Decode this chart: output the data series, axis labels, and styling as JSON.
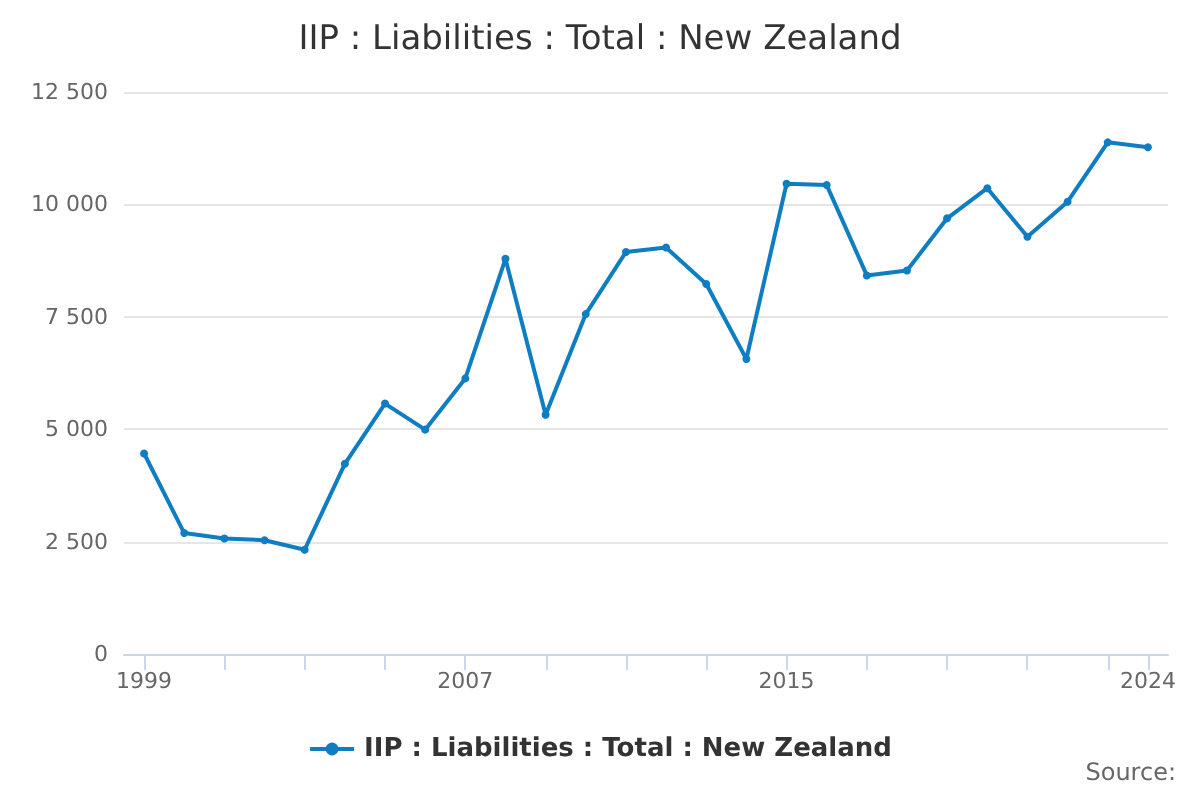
{
  "chart_data": {
    "type": "line",
    "title": "IIP : Liabilities : Total : New Zealand",
    "x": [
      1999,
      2000,
      2001,
      2002,
      2003,
      2004,
      2005,
      2006,
      2007,
      2008,
      2009,
      2010,
      2011,
      2012,
      2013,
      2014,
      2015,
      2016,
      2017,
      2018,
      2019,
      2020,
      2021,
      2022,
      2023,
      2024
    ],
    "series": [
      {
        "name": "IIP : Liabilities : Total : New Zealand",
        "color": "#0f7dc2",
        "values": [
          4460,
          2690,
          2570,
          2530,
          2320,
          4230,
          5570,
          4990,
          6130,
          8790,
          5320,
          7560,
          8940,
          9040,
          8230,
          6560,
          10460,
          10430,
          8420,
          8530,
          9690,
          10360,
          9280,
          10060,
          11380,
          11270
        ]
      }
    ],
    "xlim": [
      1998.5,
      2024.5
    ],
    "xticks": [
      1999,
      {
        "value": 2001,
        "label": null
      },
      {
        "value": 2003,
        "label": null
      },
      {
        "value": 2005,
        "label": null
      },
      2007,
      {
        "value": 2009,
        "label": null
      },
      {
        "value": 2011,
        "label": null
      },
      {
        "value": 2013,
        "label": null
      },
      2015,
      {
        "value": 2017,
        "label": null
      },
      {
        "value": 2019,
        "label": null
      },
      {
        "value": 2021,
        "label": null
      },
      {
        "value": 2023,
        "label": null
      },
      2024
    ],
    "ylim": [
      0,
      12500
    ],
    "yticks": [
      0,
      {
        "value": 2500,
        "label": "2 500"
      },
      {
        "value": 5000,
        "label": "5 000"
      },
      {
        "value": 7500,
        "label": "7 500"
      },
      {
        "value": 10000,
        "label": "10 000"
      },
      {
        "value": 12500,
        "label": "12 500"
      }
    ],
    "grid": "y",
    "legend": "bottom",
    "marker": "circle",
    "line_style": "solid",
    "annotations": [
      "Source:"
    ]
  }
}
